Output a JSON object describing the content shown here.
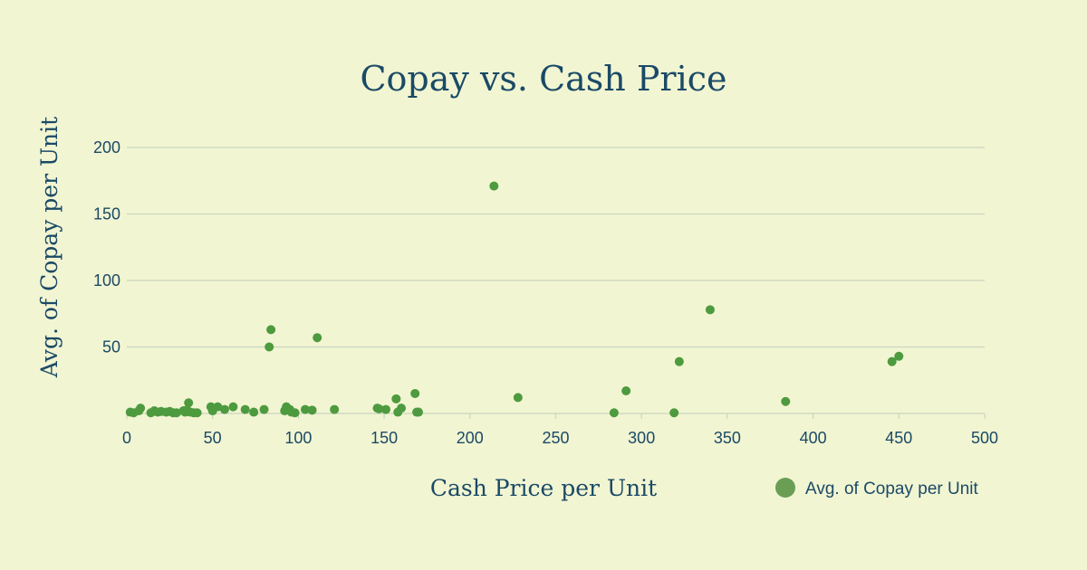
{
  "chart_data": {
    "type": "scatter",
    "title": "Copay vs. Cash Price",
    "xlabel": "Cash Price per Unit",
    "ylabel": "Avg. of Copay per Unit",
    "xlim": [
      0,
      500
    ],
    "ylim": [
      0,
      200
    ],
    "x_ticks": [
      0,
      50,
      100,
      150,
      200,
      250,
      300,
      350,
      400,
      450,
      500
    ],
    "y_ticks": [
      50,
      100,
      150,
      200
    ],
    "grid": "horizontal",
    "legend": "bottom-right",
    "colors": {
      "background": "#f2f5d2",
      "point": "#4e9a3f",
      "legend_marker": "#6a9e55",
      "text": "#1a4a66",
      "grid": "#c9d5bf"
    },
    "series": [
      {
        "name": "Avg. of Copay per Unit",
        "points": [
          [
            2,
            1
          ],
          [
            4,
            0.5
          ],
          [
            7,
            2
          ],
          [
            8,
            4
          ],
          [
            14,
            0.5
          ],
          [
            16,
            2
          ],
          [
            18,
            1
          ],
          [
            20,
            1.5
          ],
          [
            23,
            1
          ],
          [
            25,
            1.5
          ],
          [
            27,
            0.5
          ],
          [
            29,
            0.5
          ],
          [
            33,
            2
          ],
          [
            34,
            1
          ],
          [
            35,
            2.5
          ],
          [
            36,
            8
          ],
          [
            37,
            1
          ],
          [
            39,
            0.5
          ],
          [
            41,
            0.5
          ],
          [
            49,
            5
          ],
          [
            50,
            2
          ],
          [
            53,
            5
          ],
          [
            57,
            3
          ],
          [
            62,
            5
          ],
          [
            69,
            3
          ],
          [
            74,
            1
          ],
          [
            80,
            3
          ],
          [
            83,
            50
          ],
          [
            84,
            63
          ],
          [
            92,
            2
          ],
          [
            93,
            5
          ],
          [
            95,
            3
          ],
          [
            96,
            1
          ],
          [
            98,
            0.5
          ],
          [
            104,
            3
          ],
          [
            108,
            2.5
          ],
          [
            111,
            57
          ],
          [
            121,
            3
          ],
          [
            146,
            4
          ],
          [
            147,
            3.5
          ],
          [
            151,
            3
          ],
          [
            157,
            11
          ],
          [
            158,
            1
          ],
          [
            160,
            4
          ],
          [
            168,
            15
          ],
          [
            169,
            1
          ],
          [
            170,
            1
          ],
          [
            214,
            171
          ],
          [
            228,
            12
          ],
          [
            284,
            0.5
          ],
          [
            291,
            17
          ],
          [
            319,
            0.5
          ],
          [
            322,
            39
          ],
          [
            340,
            78
          ],
          [
            384,
            9
          ],
          [
            446,
            39
          ],
          [
            450,
            43
          ]
        ]
      }
    ]
  }
}
